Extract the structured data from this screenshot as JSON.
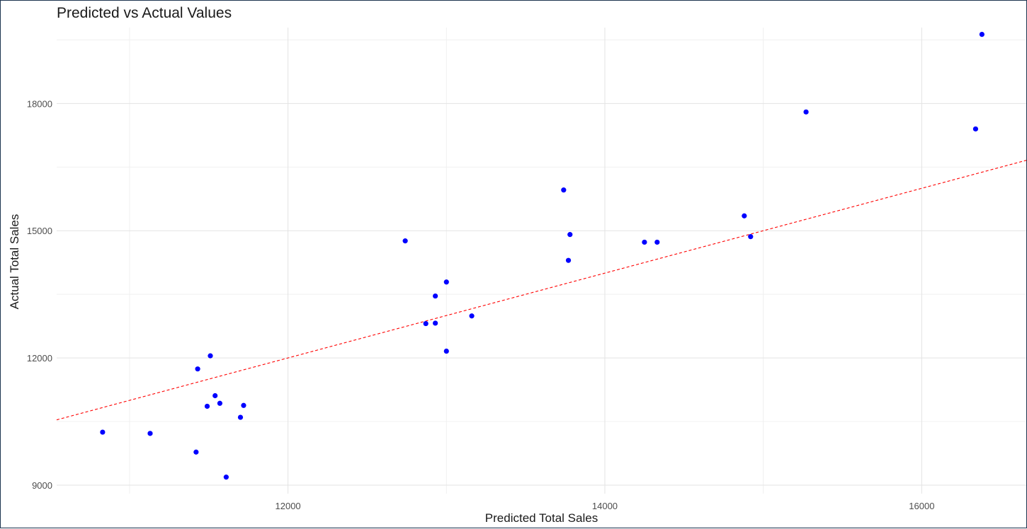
{
  "chart_data": {
    "type": "scatter",
    "title": "Predicted vs Actual Values",
    "xlabel": "Predicted Total Sales",
    "ylabel": "Actual Total Sales",
    "xlim": [
      10540,
      16660
    ],
    "ylim": [
      8800,
      19790
    ],
    "x_ticks": [
      12000,
      14000,
      16000
    ],
    "y_ticks": [
      9000,
      12000,
      15000,
      18000
    ],
    "grid": true,
    "point_color": "#0000ff",
    "reference_line": {
      "style": "dashed",
      "color": "#ff0000",
      "slope": 1,
      "intercept": 0
    },
    "points": [
      {
        "x": 10830,
        "y": 10250
      },
      {
        "x": 11130,
        "y": 10220
      },
      {
        "x": 11420,
        "y": 9780
      },
      {
        "x": 11430,
        "y": 11740
      },
      {
        "x": 11490,
        "y": 10860
      },
      {
        "x": 11510,
        "y": 12050
      },
      {
        "x": 11540,
        "y": 11110
      },
      {
        "x": 11570,
        "y": 10930
      },
      {
        "x": 11610,
        "y": 9190
      },
      {
        "x": 11700,
        "y": 10600
      },
      {
        "x": 11720,
        "y": 10880
      },
      {
        "x": 12740,
        "y": 14760
      },
      {
        "x": 12870,
        "y": 12810
      },
      {
        "x": 12930,
        "y": 12820
      },
      {
        "x": 12930,
        "y": 13460
      },
      {
        "x": 13000,
        "y": 13790
      },
      {
        "x": 13000,
        "y": 12160
      },
      {
        "x": 13160,
        "y": 12990
      },
      {
        "x": 13740,
        "y": 15960
      },
      {
        "x": 13770,
        "y": 14300
      },
      {
        "x": 13780,
        "y": 14910
      },
      {
        "x": 14250,
        "y": 14730
      },
      {
        "x": 14330,
        "y": 14730
      },
      {
        "x": 14880,
        "y": 15350
      },
      {
        "x": 14920,
        "y": 14860
      },
      {
        "x": 15270,
        "y": 17800
      },
      {
        "x": 16340,
        "y": 17400
      },
      {
        "x": 16380,
        "y": 19630
      }
    ]
  }
}
